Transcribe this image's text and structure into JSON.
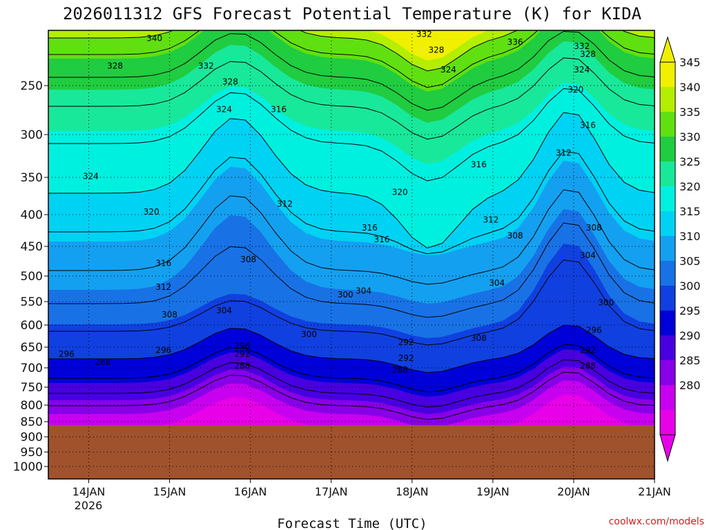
{
  "chart_data": {
    "type": "contour",
    "title": "2026011312 GFS Forecast Potential Temperature (K) for KIDA",
    "xlabel": "Forecast Time (UTC)",
    "ylabel": "",
    "credit": "coolwx.com/models",
    "y_ticks": [
      "250",
      "300",
      "350",
      "400",
      "450",
      "500",
      "550",
      "600",
      "650",
      "700",
      "750",
      "800",
      "850",
      "900",
      "950",
      "1000"
    ],
    "y_tick_values": [
      250,
      300,
      350,
      400,
      450,
      500,
      550,
      600,
      650,
      700,
      750,
      800,
      850,
      900,
      950,
      1000
    ],
    "x_ticks": [
      "14JAN",
      "15JAN",
      "16JAN",
      "17JAN",
      "18JAN",
      "19JAN",
      "20JAN",
      "21JAN"
    ],
    "x_tick_values": [
      0.5,
      1.5,
      2.5,
      3.5,
      4.5,
      5.5,
      6.5,
      7.5
    ],
    "x_year_label": "2026",
    "xlim": [
      0,
      7.5
    ],
    "colorbar": {
      "labels": [
        "345",
        "340",
        "335",
        "330",
        "325",
        "320",
        "315",
        "310",
        "305",
        "300",
        "295",
        "290",
        "285",
        "280"
      ],
      "colors": [
        "#f0f000",
        "#b4ee00",
        "#60e010",
        "#20cc40",
        "#18e89a",
        "#00f0e0",
        "#00d2f4",
        "#14a0f0",
        "#1872e6",
        "#1040e0",
        "#0000d8",
        "#4800e0",
        "#8800e8",
        "#c800f0",
        "#e800e8"
      ]
    },
    "terrain_color": "#a0522d",
    "contour_labels": [
      "340",
      "332",
      "328",
      "336",
      "332",
      "328",
      "328",
      "332",
      "324",
      "324",
      "328",
      "320",
      "324",
      "316",
      "316",
      "324",
      "312",
      "316",
      "320",
      "312",
      "320",
      "312",
      "316",
      "308",
      "308",
      "316",
      "316",
      "308",
      "304",
      "304",
      "312",
      "308",
      "304",
      "300",
      "304",
      "300",
      "300",
      "296",
      "308",
      "296",
      "296",
      "296",
      "292",
      "292",
      "292",
      "292",
      "288",
      "288",
      "288",
      "288"
    ]
  }
}
